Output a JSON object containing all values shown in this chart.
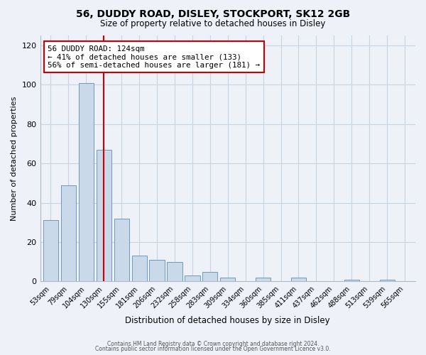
{
  "title": "56, DUDDY ROAD, DISLEY, STOCKPORT, SK12 2GB",
  "subtitle": "Size of property relative to detached houses in Disley",
  "xlabel": "Distribution of detached houses by size in Disley",
  "ylabel": "Number of detached properties",
  "bin_labels": [
    "53sqm",
    "79sqm",
    "104sqm",
    "130sqm",
    "155sqm",
    "181sqm",
    "206sqm",
    "232sqm",
    "258sqm",
    "283sqm",
    "309sqm",
    "334sqm",
    "360sqm",
    "385sqm",
    "411sqm",
    "437sqm",
    "462sqm",
    "488sqm",
    "513sqm",
    "539sqm",
    "565sqm"
  ],
  "bar_heights": [
    31,
    49,
    101,
    67,
    32,
    13,
    11,
    10,
    3,
    5,
    2,
    0,
    2,
    0,
    2,
    0,
    0,
    1,
    0,
    1,
    0
  ],
  "bar_color": "#c9d9ea",
  "bar_edge_color": "#6a9abf",
  "red_line_color": "#cc0000",
  "annotation_title": "56 DUDDY ROAD: 124sqm",
  "annotation_line1": "← 41% of detached houses are smaller (133)",
  "annotation_line2": "56% of semi-detached houses are larger (181) →",
  "annotation_box_color": "#ffffff",
  "annotation_box_edge_color": "#cc0000",
  "ylim": [
    0,
    125
  ],
  "yticks": [
    0,
    20,
    40,
    60,
    80,
    100,
    120
  ],
  "footnote1": "Contains HM Land Registry data © Crown copyright and database right 2024.",
  "footnote2": "Contains public sector information licensed under the Open Government Licence v3.0.",
  "grid_color": "#c8d4e4",
  "background_color": "#eef2f8"
}
